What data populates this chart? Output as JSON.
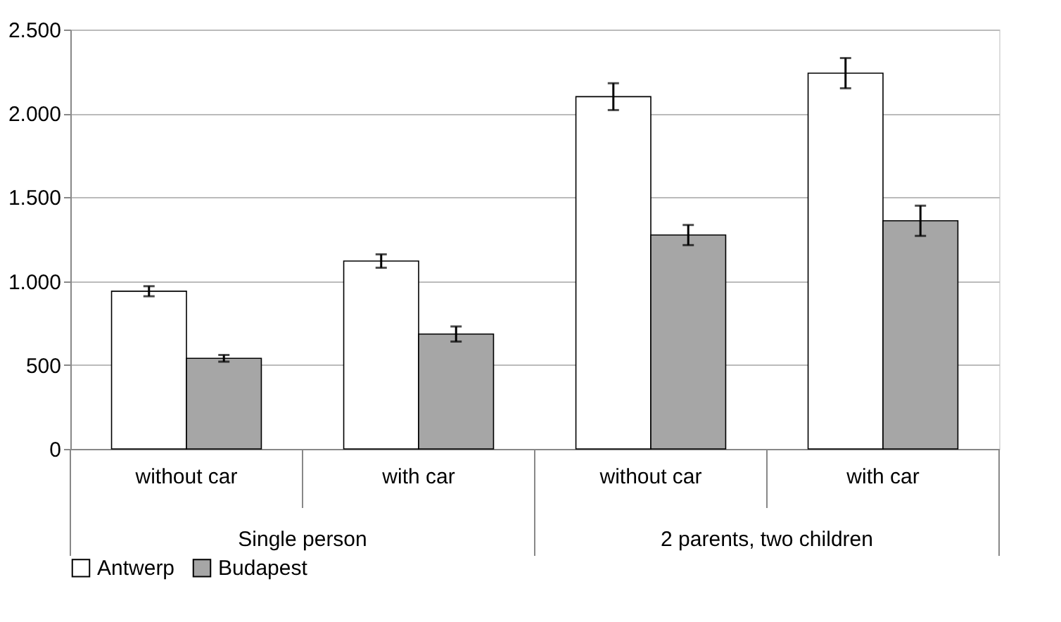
{
  "chart_data": {
    "type": "bar",
    "categories": [
      "without car",
      "with car",
      "without car",
      "with car"
    ],
    "annotations": [
      "Single person",
      "2 parents, two children"
    ],
    "series": [
      {
        "name": "Antwerp",
        "color": "#ffffff",
        "values": [
          940,
          1120,
          2100,
          2240
        ],
        "errors": [
          30,
          40,
          80,
          90
        ]
      },
      {
        "name": "Budapest",
        "color": "#a6a6a6",
        "values": [
          540,
          685,
          1275,
          1360
        ],
        "errors": [
          20,
          45,
          60,
          90
        ]
      }
    ],
    "ylim": [
      0,
      2500
    ],
    "yticks": [
      0,
      500,
      {
        "value": 1000,
        "label": "1.000"
      },
      {
        "value": 1500,
        "label": "1.500"
      },
      {
        "value": 2000,
        "label": "2.000"
      },
      {
        "value": 2500,
        "label": "2.500"
      }
    ],
    "grid": "y",
    "legend": "bottom"
  }
}
